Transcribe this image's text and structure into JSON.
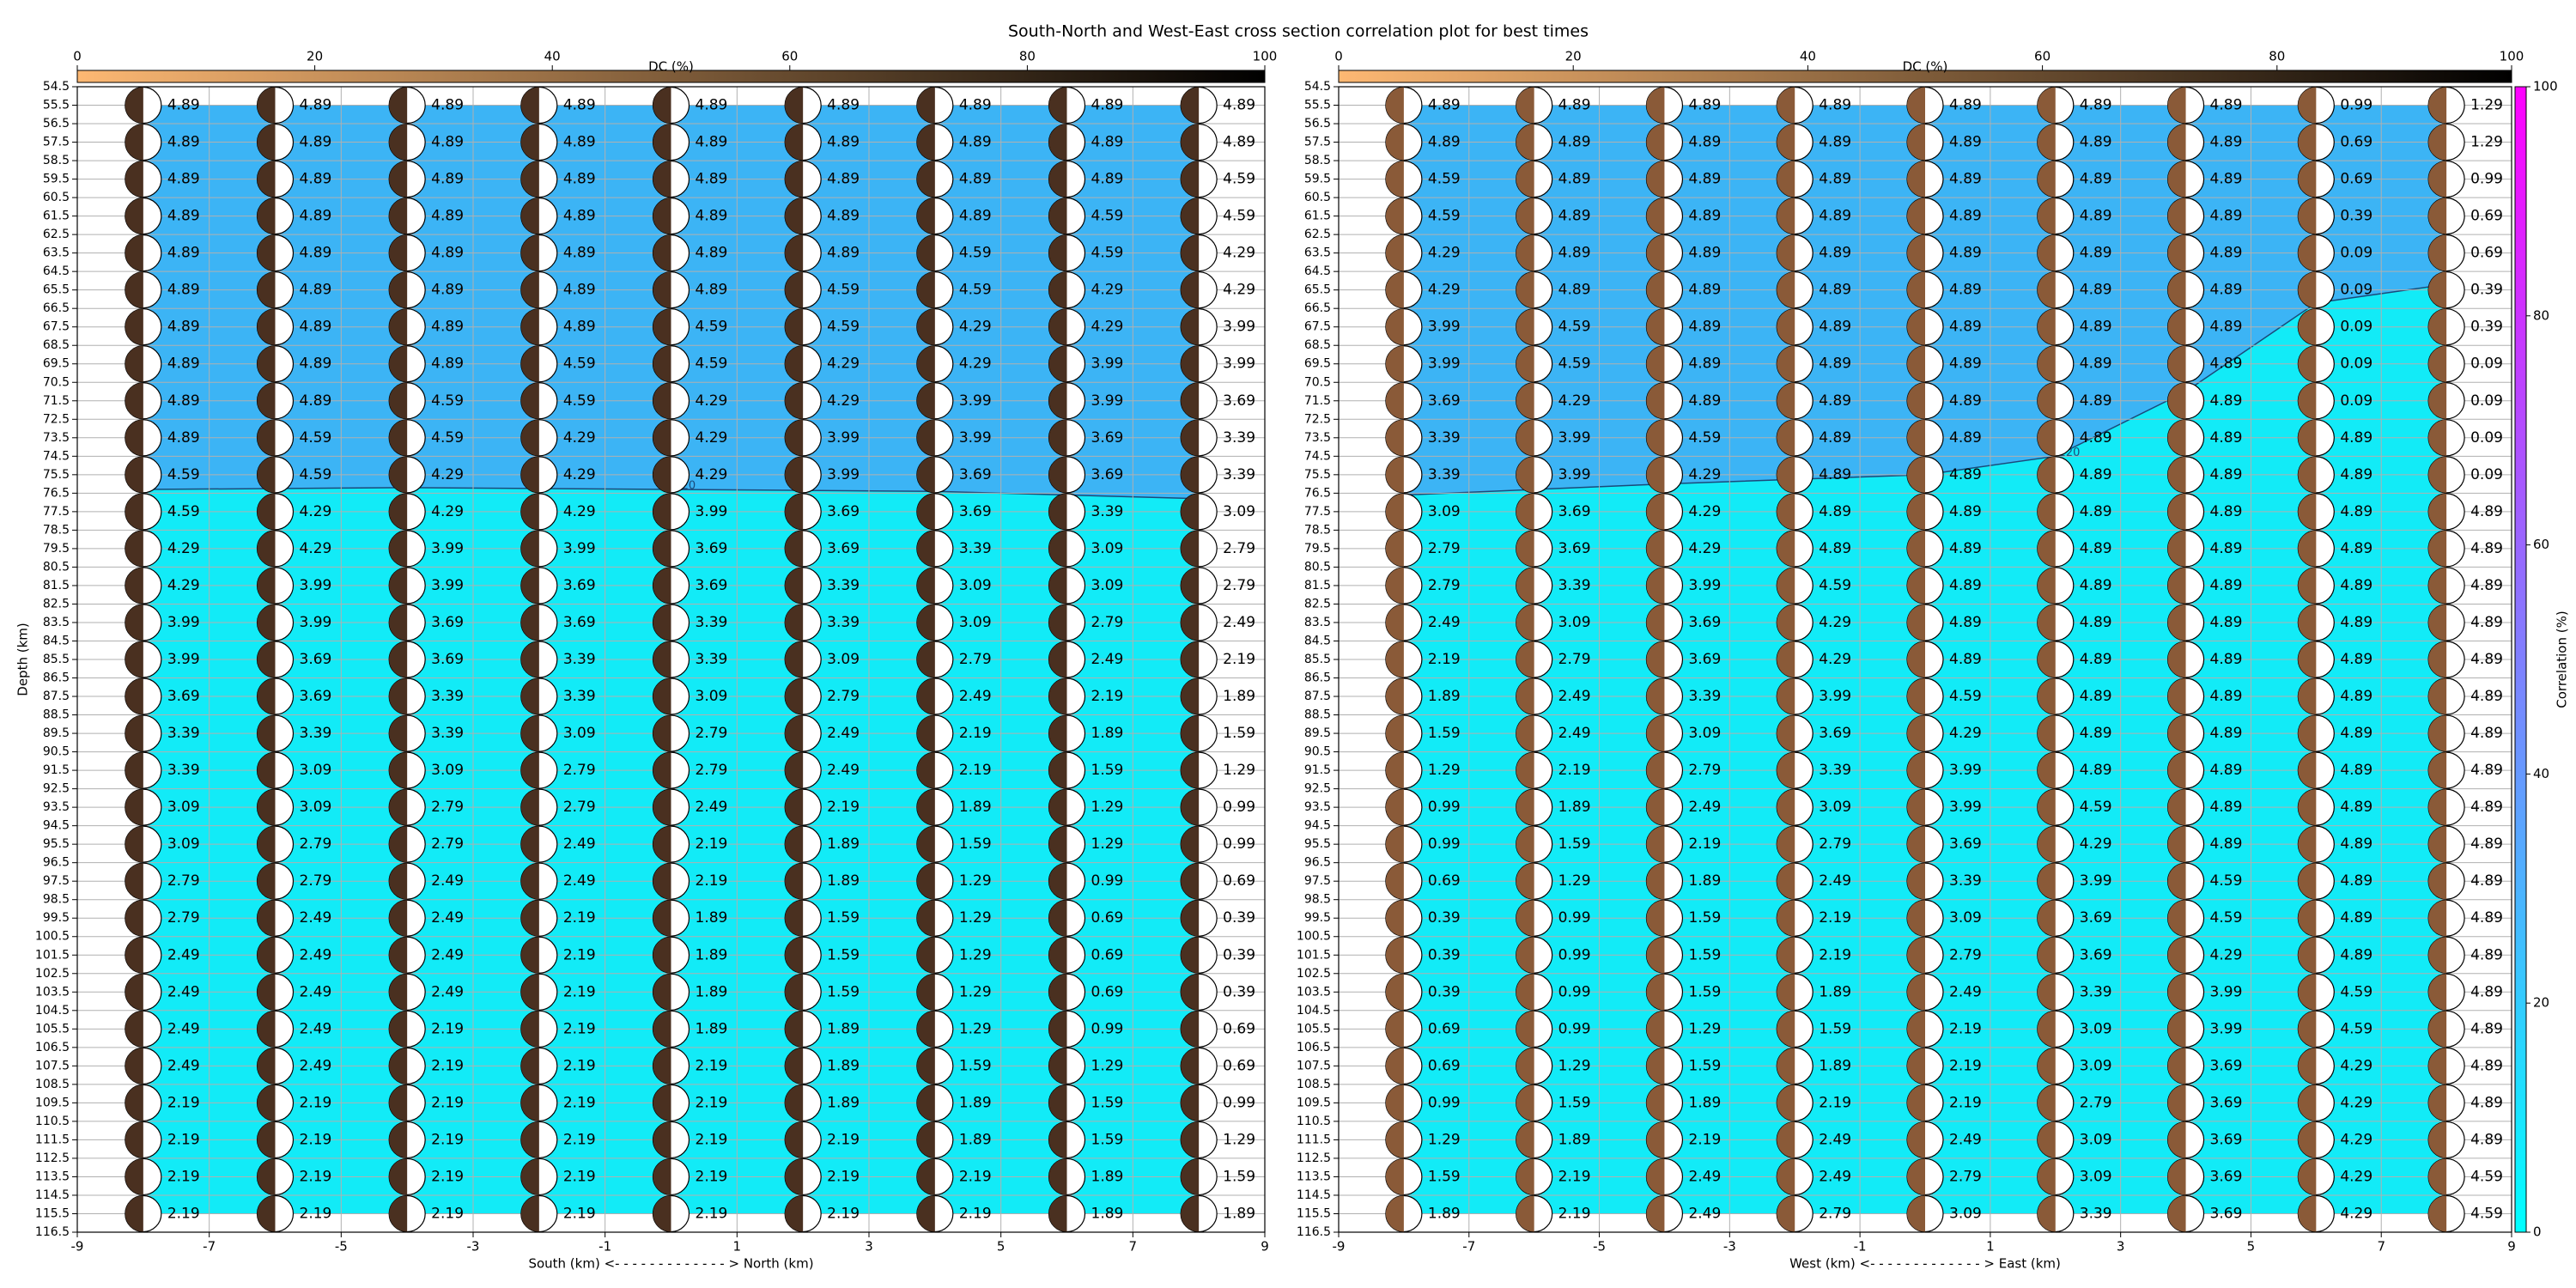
{
  "title": "South-North and West-East cross section correlation plot for best times",
  "colorbar": {
    "label": "Correlation (%)",
    "lim": [
      0,
      100
    ],
    "ticks": [
      0,
      20,
      40,
      60,
      80,
      100
    ],
    "colors": [
      "#00ffff",
      "#ff00ff"
    ]
  },
  "chart_data": [
    {
      "type": "beachball",
      "x_label": "South (km) <- - - - - - - - - - - - - > North (km)",
      "y_label": "Depth (km)",
      "xlim": [
        -9,
        9
      ],
      "xticks": [
        -9,
        -7,
        -5,
        -3,
        -1,
        1,
        3,
        5,
        7,
        9
      ],
      "ylim": [
        54.5,
        116.5
      ],
      "yticks": [
        54.5,
        55.5,
        56.5,
        57.5,
        58.5,
        59.5,
        60.5,
        61.5,
        62.5,
        63.5,
        64.5,
        65.5,
        66.5,
        67.5,
        68.5,
        69.5,
        70.5,
        71.5,
        72.5,
        73.5,
        74.5,
        75.5,
        76.5,
        77.5,
        78.5,
        79.5,
        80.5,
        81.5,
        82.5,
        83.5,
        84.5,
        85.5,
        86.5,
        87.5,
        88.5,
        89.5,
        90.5,
        91.5,
        92.5,
        93.5,
        94.5,
        95.5,
        96.5,
        97.5,
        98.5,
        99.5,
        100.5,
        101.5,
        102.5,
        103.5,
        104.5,
        105.5,
        106.5,
        107.5,
        108.5,
        109.5,
        110.5,
        111.5,
        112.5,
        113.5,
        114.5,
        115.5,
        116.5
      ],
      "grid": true,
      "ball_color": "#4a3020",
      "fill_above": "#3cb4f5",
      "fill_below": "#12ebf7",
      "dc_colorbar": {
        "label": "DC (%)",
        "lim": [
          0,
          100
        ],
        "ticks": [
          0,
          20,
          40,
          60,
          80,
          100
        ],
        "colors": [
          "#fdb873",
          "#000000"
        ]
      },
      "contour": {
        "label": "0.120",
        "x": [
          -8,
          -4,
          0,
          4,
          8
        ],
        "depth": [
          76.3,
          76.2,
          76.3,
          76.4,
          76.8
        ]
      },
      "x": [
        -8,
        -6,
        -4,
        -2,
        0,
        2,
        4,
        6,
        8
      ],
      "depths": [
        55.5,
        57.5,
        59.5,
        61.5,
        63.5,
        65.5,
        67.5,
        69.5,
        71.5,
        73.5,
        75.5,
        77.5,
        79.5,
        81.5,
        83.5,
        85.5,
        87.5,
        89.5,
        91.5,
        93.5,
        95.5,
        97.5,
        99.5,
        101.5,
        103.5,
        105.5,
        107.5,
        109.5,
        111.5,
        113.5,
        115.5
      ],
      "values": [
        [
          4.89,
          4.89,
          4.89,
          4.89,
          4.89,
          4.89,
          4.89,
          4.89,
          4.89
        ],
        [
          4.89,
          4.89,
          4.89,
          4.89,
          4.89,
          4.89,
          4.89,
          4.89,
          4.89
        ],
        [
          4.89,
          4.89,
          4.89,
          4.89,
          4.89,
          4.89,
          4.89,
          4.89,
          4.59
        ],
        [
          4.89,
          4.89,
          4.89,
          4.89,
          4.89,
          4.89,
          4.89,
          4.59,
          4.59
        ],
        [
          4.89,
          4.89,
          4.89,
          4.89,
          4.89,
          4.89,
          4.59,
          4.59,
          4.29
        ],
        [
          4.89,
          4.89,
          4.89,
          4.89,
          4.89,
          4.59,
          4.59,
          4.29,
          4.29
        ],
        [
          4.89,
          4.89,
          4.89,
          4.89,
          4.59,
          4.59,
          4.29,
          4.29,
          3.99
        ],
        [
          4.89,
          4.89,
          4.89,
          4.59,
          4.59,
          4.29,
          4.29,
          3.99,
          3.99
        ],
        [
          4.89,
          4.89,
          4.59,
          4.59,
          4.29,
          4.29,
          3.99,
          3.99,
          3.69
        ],
        [
          4.89,
          4.59,
          4.59,
          4.29,
          4.29,
          3.99,
          3.99,
          3.69,
          3.39
        ],
        [
          4.59,
          4.59,
          4.29,
          4.29,
          4.29,
          3.99,
          3.69,
          3.69,
          3.39
        ],
        [
          4.59,
          4.29,
          4.29,
          4.29,
          3.99,
          3.69,
          3.69,
          3.39,
          3.09
        ],
        [
          4.29,
          4.29,
          3.99,
          3.99,
          3.69,
          3.69,
          3.39,
          3.09,
          2.79
        ],
        [
          4.29,
          3.99,
          3.99,
          3.69,
          3.69,
          3.39,
          3.09,
          3.09,
          2.79
        ],
        [
          3.99,
          3.99,
          3.69,
          3.69,
          3.39,
          3.39,
          3.09,
          2.79,
          2.49
        ],
        [
          3.99,
          3.69,
          3.69,
          3.39,
          3.39,
          3.09,
          2.79,
          2.49,
          2.19
        ],
        [
          3.69,
          3.69,
          3.39,
          3.39,
          3.09,
          2.79,
          2.49,
          2.19,
          1.89
        ],
        [
          3.39,
          3.39,
          3.39,
          3.09,
          2.79,
          2.49,
          2.19,
          1.89,
          1.59
        ],
        [
          3.39,
          3.09,
          3.09,
          2.79,
          2.79,
          2.49,
          2.19,
          1.59,
          1.29
        ],
        [
          3.09,
          3.09,
          2.79,
          2.79,
          2.49,
          2.19,
          1.89,
          1.29,
          0.99
        ],
        [
          3.09,
          2.79,
          2.79,
          2.49,
          2.19,
          1.89,
          1.59,
          1.29,
          0.99
        ],
        [
          2.79,
          2.79,
          2.49,
          2.49,
          2.19,
          1.89,
          1.29,
          0.99,
          0.69
        ],
        [
          2.79,
          2.49,
          2.49,
          2.19,
          1.89,
          1.59,
          1.29,
          0.69,
          0.39
        ],
        [
          2.49,
          2.49,
          2.49,
          2.19,
          1.89,
          1.59,
          1.29,
          0.69,
          0.39
        ],
        [
          2.49,
          2.49,
          2.49,
          2.19,
          1.89,
          1.59,
          1.29,
          0.69,
          0.39
        ],
        [
          2.49,
          2.49,
          2.19,
          2.19,
          1.89,
          1.89,
          1.29,
          0.99,
          0.69
        ],
        [
          2.49,
          2.49,
          2.19,
          2.19,
          2.19,
          1.89,
          1.59,
          1.29,
          0.69
        ],
        [
          2.19,
          2.19,
          2.19,
          2.19,
          2.19,
          1.89,
          1.89,
          1.59,
          0.99
        ],
        [
          2.19,
          2.19,
          2.19,
          2.19,
          2.19,
          2.19,
          1.89,
          1.59,
          1.29
        ],
        [
          2.19,
          2.19,
          2.19,
          2.19,
          2.19,
          2.19,
          2.19,
          1.89,
          1.59
        ],
        [
          2.19,
          2.19,
          2.19,
          2.19,
          2.19,
          2.19,
          2.19,
          1.89,
          1.89
        ]
      ]
    },
    {
      "type": "beachball",
      "x_label": "West (km) <- - - - - - - - - - - - - > East (km)",
      "xlim": [
        -9,
        9
      ],
      "xticks": [
        -9,
        -7,
        -5,
        -3,
        -1,
        1,
        3,
        5,
        7,
        9
      ],
      "ylim": [
        54.5,
        116.5
      ],
      "yticks": [
        54.5,
        55.5,
        56.5,
        57.5,
        58.5,
        59.5,
        60.5,
        61.5,
        62.5,
        63.5,
        64.5,
        65.5,
        66.5,
        67.5,
        68.5,
        69.5,
        70.5,
        71.5,
        72.5,
        73.5,
        74.5,
        75.5,
        76.5,
        77.5,
        78.5,
        79.5,
        80.5,
        81.5,
        82.5,
        83.5,
        84.5,
        85.5,
        86.5,
        87.5,
        88.5,
        89.5,
        90.5,
        91.5,
        92.5,
        93.5,
        94.5,
        95.5,
        96.5,
        97.5,
        98.5,
        99.5,
        100.5,
        101.5,
        102.5,
        103.5,
        104.5,
        105.5,
        106.5,
        107.5,
        108.5,
        109.5,
        110.5,
        111.5,
        112.5,
        113.5,
        114.5,
        115.5,
        116.5
      ],
      "grid": true,
      "ball_color": "#8a5a38",
      "fill_above": "#3cb4f5",
      "fill_below": "#12ebf7",
      "dc_colorbar": {
        "label": "DC (%)",
        "lim": [
          0,
          100
        ],
        "ticks": [
          0,
          20,
          40,
          60,
          80,
          100
        ],
        "colors": [
          "#fdb873",
          "#000000"
        ]
      },
      "contour": {
        "label": "0.120",
        "x": [
          -8,
          -4,
          0,
          2,
          4,
          6,
          8
        ],
        "depth": [
          76.6,
          76.0,
          75.5,
          74.5,
          71.0,
          66.2,
          65.2
        ]
      },
      "x": [
        -8,
        -6,
        -4,
        -2,
        0,
        2,
        4,
        6,
        8
      ],
      "depths": [
        55.5,
        57.5,
        59.5,
        61.5,
        63.5,
        65.5,
        67.5,
        69.5,
        71.5,
        73.5,
        75.5,
        77.5,
        79.5,
        81.5,
        83.5,
        85.5,
        87.5,
        89.5,
        91.5,
        93.5,
        95.5,
        97.5,
        99.5,
        101.5,
        103.5,
        105.5,
        107.5,
        109.5,
        111.5,
        113.5,
        115.5
      ],
      "values": [
        [
          4.89,
          4.89,
          4.89,
          4.89,
          4.89,
          4.89,
          4.89,
          0.99,
          1.29
        ],
        [
          4.89,
          4.89,
          4.89,
          4.89,
          4.89,
          4.89,
          4.89,
          0.69,
          1.29
        ],
        [
          4.59,
          4.89,
          4.89,
          4.89,
          4.89,
          4.89,
          4.89,
          0.69,
          0.99
        ],
        [
          4.59,
          4.89,
          4.89,
          4.89,
          4.89,
          4.89,
          4.89,
          0.39,
          0.69
        ],
        [
          4.29,
          4.89,
          4.89,
          4.89,
          4.89,
          4.89,
          4.89,
          0.09,
          0.69
        ],
        [
          4.29,
          4.89,
          4.89,
          4.89,
          4.89,
          4.89,
          4.89,
          0.09,
          0.39
        ],
        [
          3.99,
          4.59,
          4.89,
          4.89,
          4.89,
          4.89,
          4.89,
          0.09,
          0.39
        ],
        [
          3.99,
          4.59,
          4.89,
          4.89,
          4.89,
          4.89,
          4.89,
          0.09,
          0.09
        ],
        [
          3.69,
          4.29,
          4.89,
          4.89,
          4.89,
          4.89,
          4.89,
          0.09,
          0.09
        ],
        [
          3.39,
          3.99,
          4.59,
          4.89,
          4.89,
          4.89,
          4.89,
          4.89,
          0.09
        ],
        [
          3.39,
          3.99,
          4.29,
          4.89,
          4.89,
          4.89,
          4.89,
          4.89,
          0.09
        ],
        [
          3.09,
          3.69,
          4.29,
          4.89,
          4.89,
          4.89,
          4.89,
          4.89,
          4.89
        ],
        [
          2.79,
          3.69,
          4.29,
          4.89,
          4.89,
          4.89,
          4.89,
          4.89,
          4.89
        ],
        [
          2.79,
          3.39,
          3.99,
          4.59,
          4.89,
          4.89,
          4.89,
          4.89,
          4.89
        ],
        [
          2.49,
          3.09,
          3.69,
          4.29,
          4.89,
          4.89,
          4.89,
          4.89,
          4.89
        ],
        [
          2.19,
          2.79,
          3.69,
          4.29,
          4.89,
          4.89,
          4.89,
          4.89,
          4.89
        ],
        [
          1.89,
          2.49,
          3.39,
          3.99,
          4.59,
          4.89,
          4.89,
          4.89,
          4.89
        ],
        [
          1.59,
          2.49,
          3.09,
          3.69,
          4.29,
          4.89,
          4.89,
          4.89,
          4.89
        ],
        [
          1.29,
          2.19,
          2.79,
          3.39,
          3.99,
          4.89,
          4.89,
          4.89,
          4.89
        ],
        [
          0.99,
          1.89,
          2.49,
          3.09,
          3.99,
          4.59,
          4.89,
          4.89,
          4.89
        ],
        [
          0.99,
          1.59,
          2.19,
          2.79,
          3.69,
          4.29,
          4.89,
          4.89,
          4.89
        ],
        [
          0.69,
          1.29,
          1.89,
          2.49,
          3.39,
          3.99,
          4.59,
          4.89,
          4.89
        ],
        [
          0.39,
          0.99,
          1.59,
          2.19,
          3.09,
          3.69,
          4.59,
          4.89,
          4.89
        ],
        [
          0.39,
          0.99,
          1.59,
          2.19,
          2.79,
          3.69,
          4.29,
          4.89,
          4.89
        ],
        [
          0.39,
          0.99,
          1.59,
          1.89,
          2.49,
          3.39,
          3.99,
          4.59,
          4.89
        ],
        [
          0.69,
          0.99,
          1.29,
          1.59,
          2.19,
          3.09,
          3.99,
          4.59,
          4.89
        ],
        [
          0.69,
          1.29,
          1.59,
          1.89,
          2.19,
          3.09,
          3.69,
          4.29,
          4.89
        ],
        [
          0.99,
          1.59,
          1.89,
          2.19,
          2.19,
          2.79,
          3.69,
          4.29,
          4.89
        ],
        [
          1.29,
          1.89,
          2.19,
          2.49,
          2.49,
          3.09,
          3.69,
          4.29,
          4.89
        ],
        [
          1.59,
          2.19,
          2.49,
          2.49,
          2.79,
          3.09,
          3.69,
          4.29,
          4.59
        ],
        [
          1.89,
          2.19,
          2.49,
          2.79,
          3.09,
          3.39,
          3.69,
          4.29,
          4.59
        ]
      ]
    }
  ]
}
